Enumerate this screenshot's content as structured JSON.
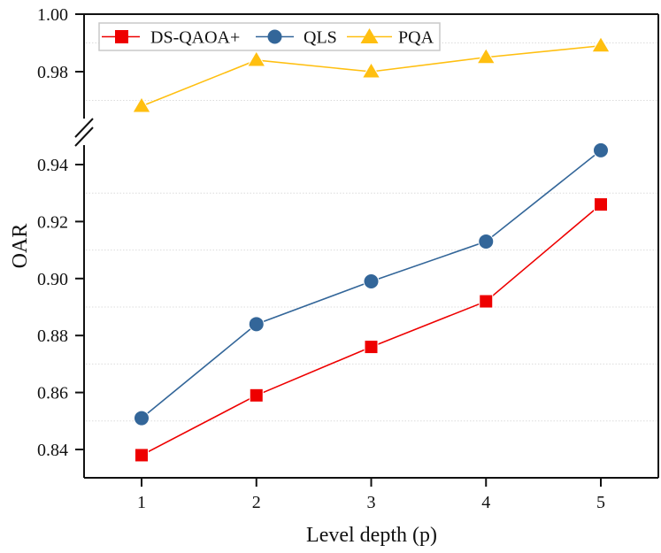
{
  "chart_data": {
    "type": "line",
    "title": "",
    "xlabel": "Level depth (p)",
    "ylabel": "OAR",
    "x": [
      1,
      2,
      3,
      4,
      5
    ],
    "x_ticks": [
      "1",
      "2",
      "3",
      "4",
      "5"
    ],
    "broken_y_axis": true,
    "y_segments": [
      {
        "name": "upper",
        "range": [
          0.965,
          1.0
        ],
        "ticks": [
          "1.00",
          "0.98"
        ],
        "tick_values": [
          1.0,
          0.98
        ],
        "grid_values": [
          0.99,
          0.97
        ]
      },
      {
        "name": "lower",
        "range": [
          0.83,
          0.945
        ],
        "ticks": [
          "0.94",
          "0.92",
          "0.90",
          "0.88",
          "0.86",
          "0.84"
        ],
        "tick_values": [
          0.94,
          0.92,
          0.9,
          0.88,
          0.86,
          0.84
        ],
        "grid_values": [
          0.93,
          0.91,
          0.89,
          0.87,
          0.85
        ]
      }
    ],
    "grid": "dotted horizontal",
    "legend_position": "top-left, horizontal",
    "series": [
      {
        "name": "DS-QAOA+",
        "color": "#ee0000",
        "marker": "square",
        "values": [
          0.838,
          0.859,
          0.876,
          0.892,
          0.926
        ]
      },
      {
        "name": "QLS",
        "color": "#336699",
        "marker": "circle",
        "values": [
          0.851,
          0.884,
          0.899,
          0.913,
          0.945
        ]
      },
      {
        "name": "PQA",
        "color": "#ffbf10",
        "marker": "triangle",
        "values": [
          0.968,
          0.984,
          0.98,
          0.985,
          0.989
        ]
      }
    ]
  },
  "legend": {
    "items": [
      {
        "label": "DS-QAOA+"
      },
      {
        "label": "QLS"
      },
      {
        "label": "PQA"
      }
    ]
  },
  "axes": {
    "xlabel": "Level depth (p)",
    "ylabel": "OAR"
  }
}
